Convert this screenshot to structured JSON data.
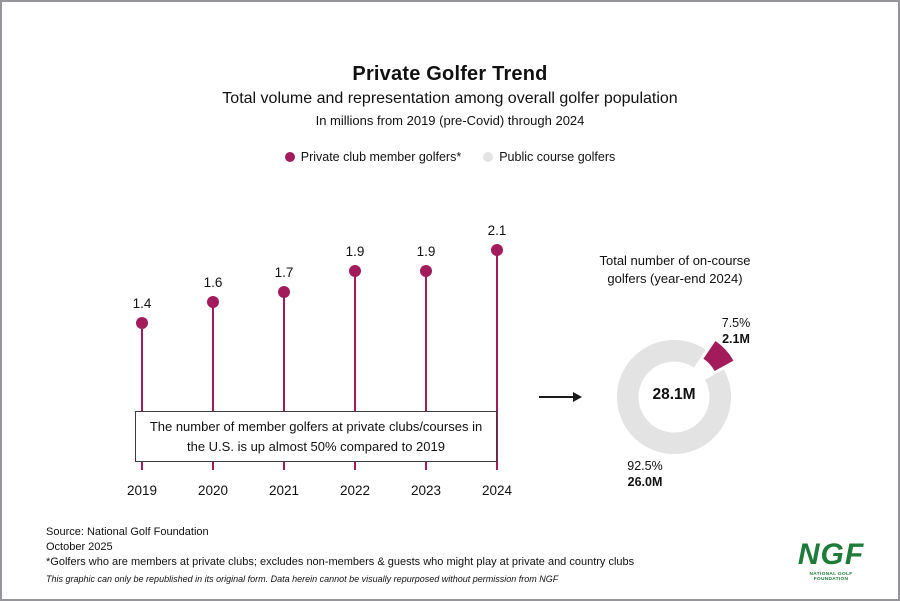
{
  "colors": {
    "accent": "#A21C5C",
    "muted_gray": "#E3E3E3",
    "arrow": "#1A1A1A"
  },
  "header": {
    "title": "Private Golfer Trend",
    "subtitle": "Total volume and representation among overall golfer population",
    "note": "In millions from 2019 (pre-Covid) through 2024"
  },
  "legend": [
    {
      "label": "Private club member golfers*",
      "color": "#A21C5C"
    },
    {
      "label": "Public course golfers",
      "color": "#E3E3E3"
    }
  ],
  "chart_data": [
    {
      "type": "lollipop-bar",
      "title": "Private club member golfers, in millions (2019-2024)",
      "categories": [
        "2019",
        "2020",
        "2021",
        "2022",
        "2023",
        "2024"
      ],
      "values": [
        1.4,
        1.6,
        1.7,
        1.9,
        1.9,
        2.1
      ],
      "value_labels": [
        "1.4",
        "1.6",
        "1.7",
        "1.9",
        "1.9",
        "2.1"
      ],
      "ylim": [
        0,
        2.2
      ],
      "grid": false,
      "annotation": "The number of member golfers at private clubs/courses in the U.S. is up almost 50% compared to 2019"
    },
    {
      "type": "pie",
      "title": "Total number of on-course golfers (year-end 2024)",
      "center_label": "28.1M",
      "slices": [
        {
          "label": "Private club member golfers",
          "pct": 7.5,
          "pct_label": "7.5%",
          "value": "2.1M",
          "color": "#A21C5C",
          "exploded": true
        },
        {
          "label": "Public course golfers",
          "pct": 92.5,
          "pct_label": "92.5%",
          "value": "26.0M",
          "color": "#E3E3E3",
          "exploded": false
        }
      ],
      "legend_position": "none"
    }
  ],
  "footer": {
    "source": "Source: National Golf Foundation",
    "date": "October 2025",
    "note": "*Golfers who are members at private clubs; excludes non-members & guests who might play at private and country clubs",
    "disclaimer": "This graphic can only be republished in its original form. Data herein cannot be visually repurposed without permission from NGF"
  },
  "logo": {
    "text": "NGF",
    "subtext": "NATIONAL GOLF FOUNDATION",
    "color": "#1E7B3A"
  }
}
